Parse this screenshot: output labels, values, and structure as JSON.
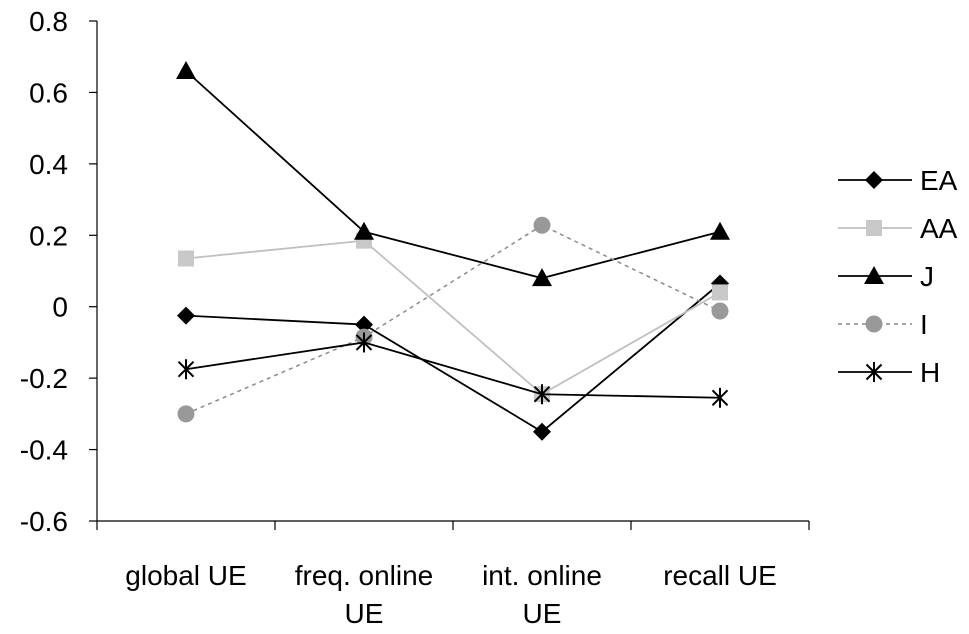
{
  "chart_data": {
    "type": "line",
    "title": "",
    "xlabel": "",
    "ylabel": "",
    "categories": [
      [
        "global UE"
      ],
      [
        "freq. online",
        "UE"
      ],
      [
        "int. online",
        "UE"
      ],
      [
        "recall UE"
      ]
    ],
    "ylim": [
      -0.6,
      0.8
    ],
    "yticks": [
      0.8,
      0.6,
      0.4,
      0.2,
      0,
      -0.2,
      -0.4,
      -0.6
    ],
    "ytick_labels": [
      "0.8",
      "0.6",
      "0.4",
      "0.2",
      "0",
      "-0.2",
      "-0.4",
      "-0.6"
    ],
    "grid": false,
    "legend_position": "right",
    "series": [
      {
        "name": "EA",
        "values": [
          -0.025,
          -0.05,
          -0.35,
          0.065
        ],
        "color": "#000000",
        "dash": "solid",
        "marker": "diamond",
        "marker_color": "#000000"
      },
      {
        "name": "AA",
        "values": [
          0.135,
          0.185,
          -0.245,
          0.04
        ],
        "color": "#c0c0c0",
        "dash": "solid",
        "marker": "square",
        "marker_color": "#c8c8c8"
      },
      {
        "name": "J",
        "values": [
          0.66,
          0.21,
          0.08,
          0.21
        ],
        "color": "#000000",
        "dash": "solid",
        "marker": "triangle",
        "marker_color": "#000000"
      },
      {
        "name": "I",
        "values": [
          -0.3,
          -0.085,
          0.228,
          -0.012
        ],
        "color": "#8a8a8a",
        "dash": "dotted",
        "marker": "circle",
        "marker_color": "#999999"
      },
      {
        "name": "H",
        "values": [
          -0.175,
          -0.1,
          -0.245,
          -0.255
        ],
        "color": "#000000",
        "dash": "solid",
        "marker": "asterisk",
        "marker_color": "#000000"
      }
    ]
  }
}
